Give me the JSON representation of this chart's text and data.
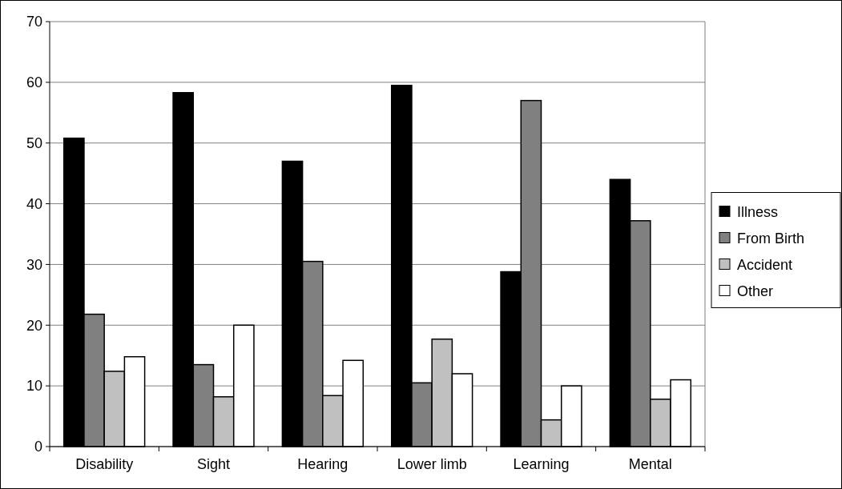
{
  "chart_data": {
    "type": "bar",
    "categories": [
      "Disability",
      "Sight",
      "Hearing",
      "Lower limb",
      "Learning",
      "Mental"
    ],
    "series": [
      {
        "name": "Illness",
        "color": "#000000",
        "values": [
          50.8,
          58.3,
          47,
          59.5,
          28.8,
          44
        ]
      },
      {
        "name": "From Birth",
        "color": "#808080",
        "values": [
          21.8,
          13.5,
          30.5,
          10.5,
          57,
          37.2
        ]
      },
      {
        "name": "Accident",
        "color": "#c0c0c0",
        "values": [
          12.4,
          8.2,
          8.4,
          17.7,
          4.4,
          7.8
        ]
      },
      {
        "name": "Other",
        "color": "#ffffff",
        "values": [
          14.8,
          20,
          14.2,
          12,
          10,
          11
        ]
      }
    ],
    "ylim": [
      0,
      70
    ],
    "yticks": [
      0,
      10,
      20,
      30,
      40,
      50,
      60,
      70
    ],
    "grid": "y",
    "legend": "right"
  }
}
